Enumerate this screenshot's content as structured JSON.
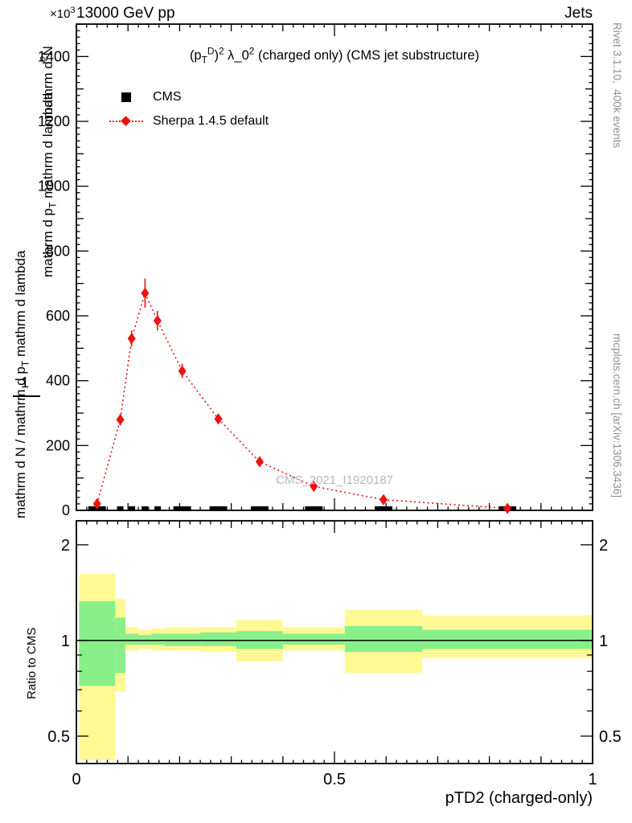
{
  "header": {
    "left": "13000 GeV pp",
    "right": "Jets"
  },
  "y_scale_note": "×10^{3}",
  "titles": {
    "main": "(p_{T}^{D})^{2} λ_0^{2} (charged only) (CMS jet substructure)"
  },
  "watermark": "CMS_2021_I1920187",
  "ylabels": {
    "inner_numerator": "mathrm d^{2}N",
    "inner_denominator": "mathrm d p_{T} mathrm d lambda",
    "outer_one": "1",
    "outer_text": "mathrm d N / mathrm d p_{T} mathrm d lambda",
    "ratio": "Ratio to CMS"
  },
  "legend": {
    "items": [
      {
        "label": "CMS"
      },
      {
        "label": "Sherpa 1.4.5 default"
      }
    ]
  },
  "credits": {
    "top": "Rivet 3.1.10,  400k events",
    "bottom": "mcplots.cern.ch [arXiv:1306.3436]"
  },
  "x_axis_title": "pTD2 (charged-only)",
  "colors": {
    "band_outer": "#fff893",
    "band_inner": "#89ef8a",
    "sherpa": "#ee1111",
    "cms": "#000000",
    "frame": "#000000",
    "watermark": "#b9b9b9",
    "credits": "#8f8f8f"
  },
  "chart_data": {
    "type": "line",
    "title": "(p_T^D)^2 λ_0^2 (charged only) (CMS jet substructure)",
    "xlabel": "pTD2 (charged-only)",
    "xlim": [
      0,
      1
    ],
    "xticks": {
      "labels": [
        "0",
        "0.5",
        "1"
      ],
      "values": [
        0,
        0.5,
        1
      ],
      "medium_step": 0.1,
      "minor_step": 0.02
    },
    "main_panel": {
      "ylim": [
        0,
        1500
      ],
      "y_unit_multiplier": "×10^3",
      "yticks": {
        "labels": [
          "0",
          "200",
          "400",
          "600",
          "800",
          "1000",
          "1200",
          "1400"
        ],
        "medium_step": 100,
        "minor_step": 20
      },
      "series": [
        {
          "name": "CMS",
          "type": "data-bars",
          "marker": "square",
          "color": "#000000",
          "bins": [
            [
              0.005,
              0.075
            ],
            [
              0.075,
              0.095
            ],
            [
              0.095,
              0.12
            ],
            [
              0.12,
              0.145
            ],
            [
              0.145,
              0.17
            ],
            [
              0.17,
              0.24
            ],
            [
              0.24,
              0.31
            ],
            [
              0.31,
              0.4
            ],
            [
              0.4,
              0.52
            ],
            [
              0.52,
              0.67
            ],
            [
              0.67,
              1.0
            ]
          ],
          "values": [
            5,
            5,
            5,
            5,
            5,
            5,
            5,
            5,
            5,
            5,
            5
          ]
        },
        {
          "name": "Sherpa 1.4.5 default",
          "type": "line-points",
          "marker": "diamond",
          "line_style": "dotted",
          "color": "#ee1111",
          "x": [
            0.04,
            0.085,
            0.107,
            0.133,
            0.157,
            0.205,
            0.275,
            0.355,
            0.46,
            0.595,
            0.835
          ],
          "y": [
            20,
            280,
            530,
            670,
            585,
            430,
            282,
            150,
            74,
            33,
            6
          ],
          "yerr": [
            8,
            18,
            25,
            45,
            30,
            22,
            15,
            10,
            6,
            5,
            3
          ]
        }
      ]
    },
    "ratio_panel": {
      "ylabel": "Ratio to CMS",
      "yscale": "log",
      "ylim": [
        0.41,
        2.38
      ],
      "yticks": {
        "labels": [
          "0.5",
          "1",
          "2"
        ],
        "values": [
          0.5,
          1,
          2
        ],
        "minor": [
          0.6,
          0.7,
          0.8,
          0.9
        ]
      },
      "reference_line": 1,
      "bands": [
        {
          "x0": 0.005,
          "x1": 0.075,
          "outer": [
            0.42,
            1.62
          ],
          "inner": [
            0.72,
            1.33
          ]
        },
        {
          "x0": 0.075,
          "x1": 0.095,
          "outer": [
            0.69,
            1.35
          ],
          "inner": [
            0.79,
            1.18
          ]
        },
        {
          "x0": 0.095,
          "x1": 0.12,
          "outer": [
            0.93,
            1.1
          ],
          "inner": [
            0.97,
            1.05
          ]
        },
        {
          "x0": 0.12,
          "x1": 0.145,
          "outer": [
            0.94,
            1.08
          ],
          "inner": [
            0.97,
            1.04
          ]
        },
        {
          "x0": 0.145,
          "x1": 0.17,
          "outer": [
            0.93,
            1.09
          ],
          "inner": [
            0.97,
            1.05
          ]
        },
        {
          "x0": 0.17,
          "x1": 0.24,
          "outer": [
            0.93,
            1.1
          ],
          "inner": [
            0.96,
            1.05
          ]
        },
        {
          "x0": 0.24,
          "x1": 0.31,
          "outer": [
            0.92,
            1.1
          ],
          "inner": [
            0.96,
            1.06
          ]
        },
        {
          "x0": 0.31,
          "x1": 0.4,
          "outer": [
            0.86,
            1.16
          ],
          "inner": [
            0.94,
            1.07
          ]
        },
        {
          "x0": 0.4,
          "x1": 0.52,
          "outer": [
            0.93,
            1.1
          ],
          "inner": [
            0.97,
            1.05
          ]
        },
        {
          "x0": 0.52,
          "x1": 0.67,
          "outer": [
            0.79,
            1.25
          ],
          "inner": [
            0.92,
            1.11
          ]
        },
        {
          "x0": 0.67,
          "x1": 1.0,
          "outer": [
            0.88,
            1.2
          ],
          "inner": [
            0.94,
            1.08
          ]
        }
      ]
    }
  }
}
